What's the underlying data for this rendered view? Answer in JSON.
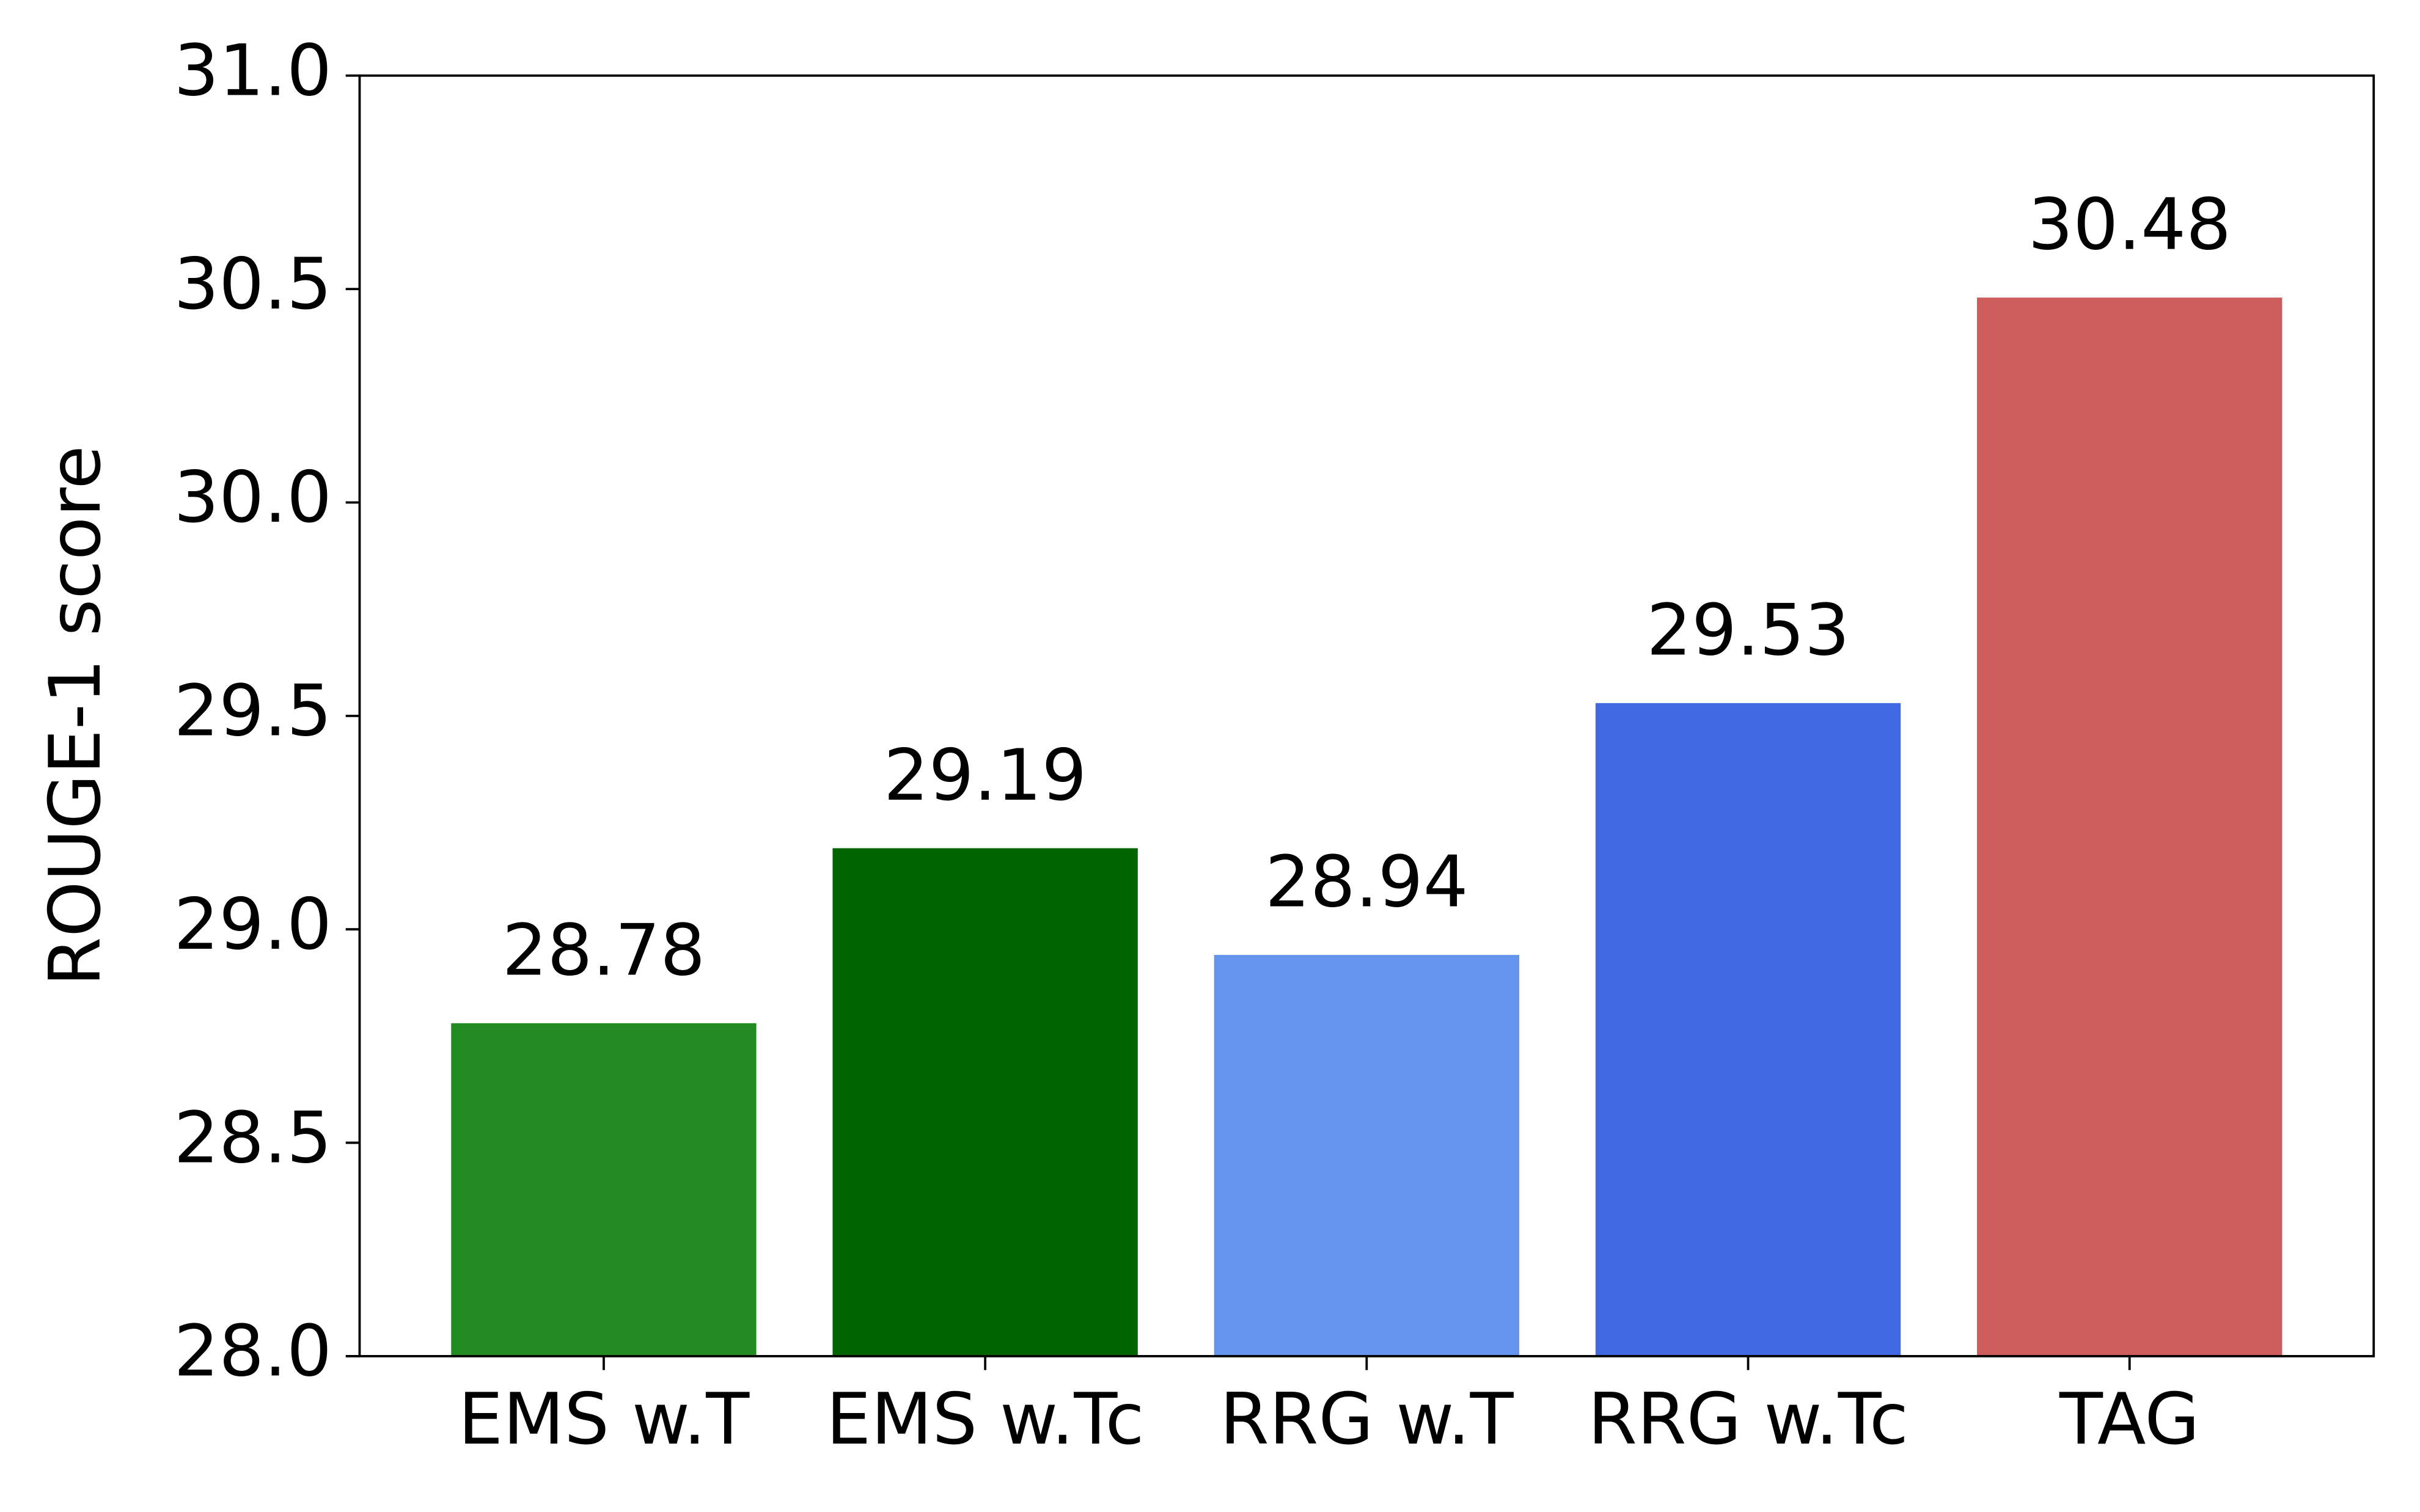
{
  "chart_data": {
    "type": "bar",
    "y_label": "ROUGE-1 score",
    "categories": [
      "EMS w.T",
      "EMS w.Tc",
      "RRG w.T",
      "RRG w.Tc",
      "TAG"
    ],
    "values": [
      28.78,
      29.19,
      28.94,
      29.53,
      30.48
    ],
    "colors": [
      "#228b22",
      "#006400",
      "#6495ed",
      "#4169e1",
      "#cd5c5c"
    ],
    "ylim": [
      28.0,
      31.0
    ],
    "yticks": [
      {
        "value": 28.0,
        "label": "28.0"
      },
      28.5,
      {
        "value": 29.0,
        "label": "29.0"
      },
      29.5,
      {
        "value": 30.0,
        "label": "30.0"
      },
      30.5,
      {
        "value": 31.0,
        "label": "31.0"
      }
    ],
    "grid": false
  }
}
